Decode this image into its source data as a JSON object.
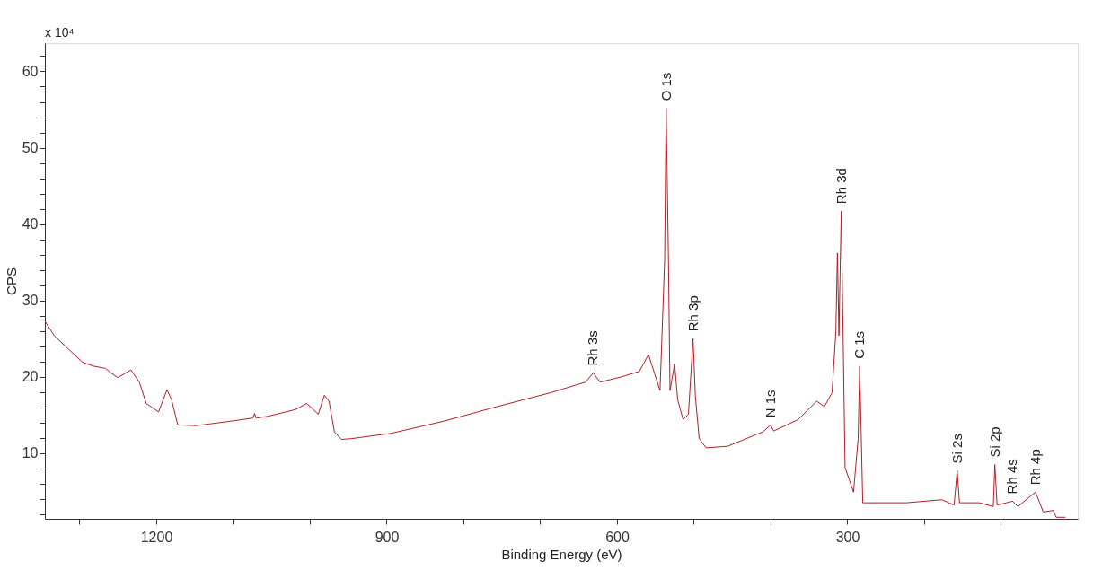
{
  "chart_data": {
    "type": "line",
    "xlabel": "Binding Energy (eV)",
    "ylabel": "CPS",
    "xlim": [
      1345,
      0
    ],
    "ylim": [
      1.4,
      63.7
    ],
    "xticks": [
      {
        "value": 1300,
        "label": null
      },
      1200,
      {
        "value": 1100,
        "label": null
      },
      {
        "value": 1000,
        "label": null
      },
      900,
      {
        "value": 800,
        "label": null
      },
      {
        "value": 700,
        "label": null
      },
      600,
      {
        "value": 500,
        "label": null
      },
      {
        "value": 400,
        "label": null
      },
      300,
      {
        "value": 200,
        "label": null
      },
      {
        "value": 100,
        "label": null
      }
    ],
    "yticks": [
      {
        "value": 2,
        "label": null
      },
      {
        "value": 4,
        "label": null
      },
      {
        "value": 6,
        "label": null
      },
      {
        "value": 8,
        "label": null
      },
      10,
      {
        "value": 12,
        "label": null
      },
      {
        "value": 14,
        "label": null
      },
      {
        "value": 16,
        "label": null
      },
      {
        "value": 18,
        "label": null
      },
      20,
      {
        "value": 22,
        "label": null
      },
      {
        "value": 24,
        "label": null
      },
      {
        "value": 26,
        "label": null
      },
      {
        "value": 28,
        "label": null
      },
      30,
      {
        "value": 32,
        "label": null
      },
      {
        "value": 34,
        "label": null
      },
      {
        "value": 36,
        "label": null
      },
      {
        "value": 38,
        "label": null
      },
      40,
      {
        "value": 42,
        "label": null
      },
      {
        "value": 44,
        "label": null
      },
      {
        "value": 46,
        "label": null
      },
      {
        "value": 48,
        "label": null
      },
      50,
      {
        "value": 52,
        "label": null
      },
      {
        "value": 54,
        "label": null
      },
      {
        "value": 56,
        "label": null
      },
      {
        "value": 58,
        "label": null
      },
      60,
      {
        "value": 62,
        "label": null
      }
    ],
    "grid": false,
    "marker": "none",
    "line_style": "solid",
    "series": [
      {
        "color": "#b0202a",
        "x": [
          1345,
          1333,
          1314,
          1296,
          1282,
          1266,
          1259,
          1250,
          1233,
          1222,
          1213,
          1197,
          1186,
          1180,
          1172,
          1148,
          1102,
          1074,
          1072,
          1070,
          1056,
          1019,
          1004,
          989,
          981,
          975,
          968,
          959,
          946,
          894,
          825,
          756,
          687,
          641,
          631,
          622,
          594,
          571,
          559,
          544,
          538,
          536,
          533,
          531,
          525,
          521,
          514,
          507,
          501,
          498,
          493,
          484,
          456,
          410,
          400,
          396,
          364,
          340,
          330,
          320,
          315,
          313,
          311,
          308,
          303,
          292,
          286,
          284,
          280,
          223,
          177,
          161,
          157,
          154,
          128,
          110,
          108,
          105,
          85,
          78,
          55,
          45,
          32,
          28,
          16
        ],
        "values": [
          27.3,
          25.4,
          23.6,
          21.9,
          21.4,
          21.1,
          20.5,
          19.9,
          20.9,
          19.3,
          16.5,
          15.4,
          18.3,
          17.0,
          13.7,
          13.6,
          14.2,
          14.6,
          15.2,
          14.6,
          14.8,
          15.7,
          16.5,
          15.1,
          17.6,
          16.8,
          12.8,
          11.8,
          11.9,
          12.6,
          14.2,
          16.1,
          17.9,
          19.3,
          20.5,
          19.3,
          20.0,
          20.7,
          22.9,
          18.2,
          35.2,
          55.2,
          35.2,
          18.2,
          21.7,
          17.0,
          14.4,
          15.1,
          25.0,
          17.5,
          11.9,
          10.7,
          10.9,
          12.8,
          13.7,
          12.9,
          14.4,
          16.8,
          16.1,
          17.9,
          25.9,
          36.2,
          25.4,
          41.7,
          8.1,
          4.9,
          11.9,
          21.4,
          3.5,
          3.5,
          3.9,
          3.2,
          7.7,
          3.5,
          3.5,
          3.0,
          8.5,
          3.2,
          3.7,
          3.0,
          4.9,
          2.3,
          2.5,
          1.6,
          1.6
        ]
      }
    ],
    "annotations": [
      "x 10⁴",
      {
        "text": "Rh 3s",
        "x": 631,
        "y": 20.5
      },
      {
        "text": "O 1s",
        "x": 536,
        "y": 55.2
      },
      {
        "text": "Rh 3p",
        "x": 501,
        "y": 25.0
      },
      {
        "text": "N 1s",
        "x": 400,
        "y": 13.7
      },
      {
        "text": "Rh 3d",
        "x": 308,
        "y": 41.7
      },
      {
        "text": "C 1s",
        "x": 284,
        "y": 21.4
      },
      {
        "text": "Si 2s",
        "x": 157,
        "y": 7.7
      },
      {
        "text": "Si 2p",
        "x": 108,
        "y": 8.5
      },
      {
        "text": "Rh 4s",
        "x": 85,
        "y": 3.7
      },
      {
        "text": "Rh 4p",
        "x": 55,
        "y": 4.9
      }
    ]
  }
}
